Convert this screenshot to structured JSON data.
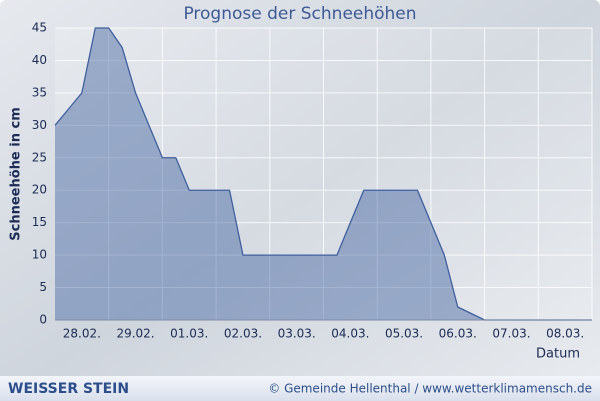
{
  "chart_data": {
    "type": "area",
    "title": "Prognose der Schneehöhen",
    "y_label": "Schneehöhe in cm",
    "x_label": "Datum",
    "x": [
      0,
      0.25,
      0.5,
      0.75,
      1,
      1.25,
      1.5,
      1.75,
      2,
      2.25,
      2.5,
      2.75,
      3,
      3.25,
      3.5,
      3.75,
      4,
      4.25,
      4.5,
      4.75,
      5,
      5.25,
      5.5,
      5.75,
      6,
      6.25,
      6.5,
      6.75,
      7,
      7.25,
      7.5,
      7.75,
      8,
      8.25,
      8.5,
      8.75,
      9,
      9.25,
      9.5,
      9.75,
      10
    ],
    "values": [
      30,
      32.5,
      35,
      45,
      45,
      42,
      35,
      30,
      25,
      25,
      20,
      20,
      20,
      20,
      10,
      10,
      10,
      10,
      10,
      10,
      10,
      10,
      15,
      20,
      20,
      20,
      20,
      20,
      15,
      10,
      2,
      1,
      0,
      0,
      0,
      0,
      0,
      0,
      0,
      0,
      0
    ],
    "color": "#3f5f9e",
    "xlim": [
      0,
      10
    ],
    "xticks": [
      {
        "value": 0.5,
        "label": "28.02."
      },
      {
        "value": 1.5,
        "label": "29.02."
      },
      {
        "value": 2.5,
        "label": "01.03."
      },
      {
        "value": 3.5,
        "label": "02.03."
      },
      {
        "value": 4.5,
        "label": "03.03."
      },
      {
        "value": 5.5,
        "label": "04.03."
      },
      {
        "value": 6.5,
        "label": "05.03."
      },
      {
        "value": 7.5,
        "label": "06.03."
      },
      {
        "value": 8.5,
        "label": "07.03."
      },
      {
        "value": 9.5,
        "label": "08.03."
      }
    ],
    "ylim": [
      0,
      45
    ],
    "yticks": [
      0,
      5,
      10,
      15,
      20,
      25,
      30,
      35,
      40,
      45
    ],
    "grid": true
  },
  "footer": {
    "left": "WEISSER STEIN",
    "right": "© Gemeinde Hellenthal / www.wetterklimamensch.de"
  }
}
